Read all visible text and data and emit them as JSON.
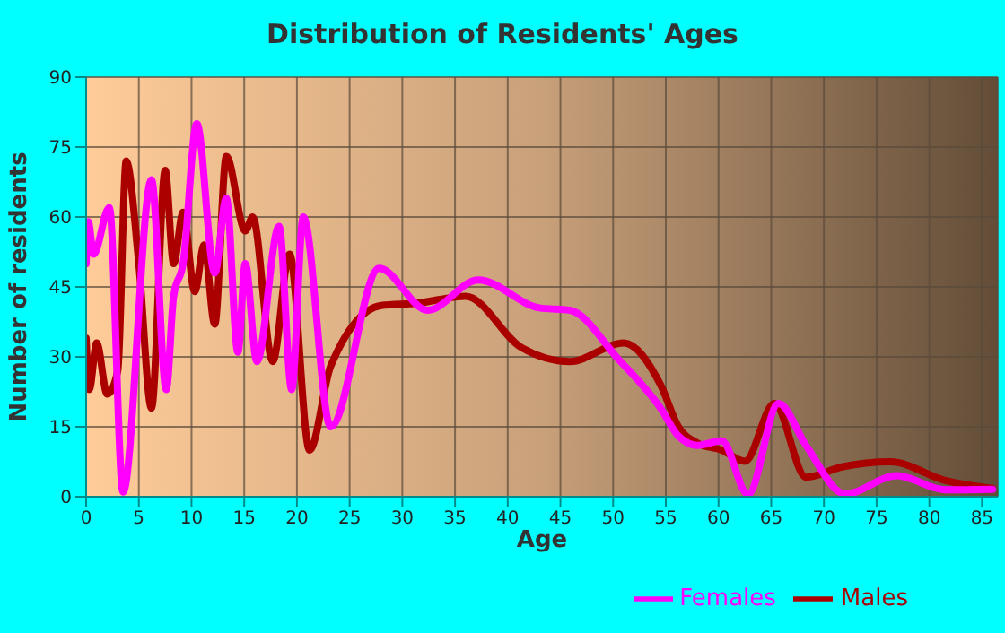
{
  "chart_data": {
    "type": "line",
    "title": "Distribution of Residents' Ages",
    "xlabel": "Age",
    "ylabel": "Number of residents",
    "xlim": [
      0,
      86.5
    ],
    "xticks": [
      0,
      5,
      10,
      15,
      20,
      25,
      30,
      35,
      40,
      45,
      50,
      55,
      60,
      65,
      70,
      75,
      80,
      85
    ],
    "ylim": [
      0,
      90
    ],
    "yticks": [
      0,
      15,
      30,
      45,
      60,
      75,
      90
    ],
    "grid": true,
    "legend": "bottom right",
    "marker": "none",
    "line_style": "solid",
    "series": [
      {
        "name": "Males",
        "color": "#aa0000",
        "x": [
          0,
          0.3,
          1,
          2,
          3,
          3.8,
          5,
          6.2,
          7.5,
          8.3,
          9.2,
          10.3,
          11.2,
          12.2,
          13.3,
          15.1,
          15.8,
          17.7,
          19.3,
          21.2,
          23.2,
          28,
          31.4,
          36,
          41.3,
          45.9,
          51,
          54.5,
          56.2,
          58,
          60.3,
          62.5,
          65.3,
          68.3,
          71.7,
          76.3,
          81.5,
          86
        ],
        "values": [
          34,
          23,
          33,
          22,
          27,
          72,
          50,
          19,
          70,
          50,
          61,
          44,
          54,
          37,
          73,
          57,
          60,
          29,
          52,
          10,
          28,
          41,
          41.5,
          43,
          32,
          29,
          33,
          24,
          15,
          11.5,
          10,
          7.6,
          20,
          4.2,
          6.4,
          7.5,
          3.5,
          1.8
        ]
      },
      {
        "name": "Females",
        "color": "#ff00ff",
        "x": [
          0,
          0.2,
          0.7,
          2.2,
          3.5,
          6.2,
          7.6,
          8.3,
          9.2,
          10.5,
          12.2,
          13.3,
          14.4,
          15.1,
          16.2,
          18.3,
          19.5,
          20.6,
          23.2,
          27.8,
          32.4,
          37.2,
          43,
          45.9,
          50.5,
          54.5,
          56.2,
          58,
          60.3,
          62.8,
          65.7,
          68.3,
          72,
          76.9,
          81.5,
          86
        ],
        "values": [
          50,
          59,
          52,
          62,
          1,
          68,
          23,
          43,
          50,
          80,
          48,
          64,
          31,
          50,
          29,
          58,
          23,
          60,
          15,
          49,
          40,
          46.5,
          40.5,
          40,
          29.5,
          19,
          13,
          11,
          12,
          0.5,
          20,
          11,
          0.6,
          4.5,
          1.5,
          1.6
        ]
      }
    ]
  }
}
